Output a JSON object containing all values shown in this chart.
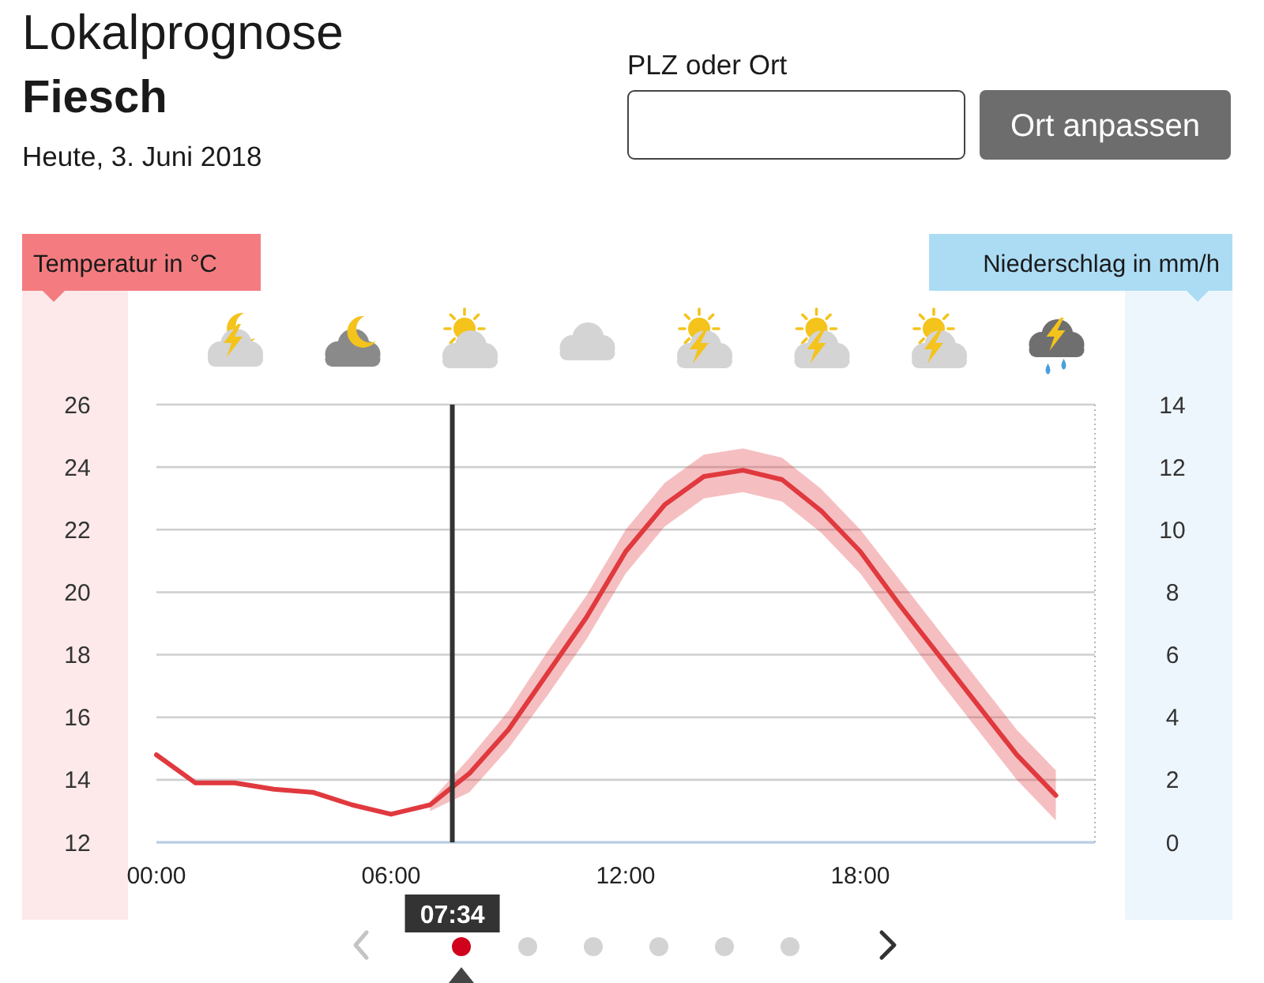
{
  "chart_data": {
    "type": "line",
    "title": "Lokalprognose",
    "subtitle": "Fiesch",
    "annotations": [
      "Heute, 3. Juni 2018",
      "PLZ oder Ort",
      "Ort anpassen"
    ],
    "ylabel": "Temperatur in °C",
    "y2label": "Niederschlag in mm/h",
    "x": [
      "2018-06-03T00:00",
      "2018-06-03T01:00",
      "2018-06-03T02:00",
      "2018-06-03T03:00",
      "2018-06-03T04:00",
      "2018-06-03T05:00",
      "2018-06-03T06:00",
      "2018-06-03T07:00",
      "2018-06-03T08:00",
      "2018-06-03T09:00",
      "2018-06-03T10:00",
      "2018-06-03T11:00",
      "2018-06-03T12:00",
      "2018-06-03T13:00",
      "2018-06-03T14:00",
      "2018-06-03T15:00",
      "2018-06-03T16:00",
      "2018-06-03T17:00",
      "2018-06-03T18:00",
      "2018-06-03T19:00",
      "2018-06-03T20:00",
      "2018-06-03T21:00",
      "2018-06-03T22:00",
      "2018-06-03T23:00"
    ],
    "xlim": [
      "2018-06-03T00:00",
      "2018-06-04T00:00"
    ],
    "xticks": [
      {
        "value": "2018-06-03T00:00",
        "label": "00:00"
      },
      {
        "value": "2018-06-03T06:00",
        "label": "06:00"
      },
      {
        "value": "2018-06-03T12:00",
        "label": "12:00"
      },
      {
        "value": "2018-06-03T18:00",
        "label": "18:00"
      }
    ],
    "ylim": [
      12,
      26
    ],
    "yticks": [
      12,
      14,
      16,
      18,
      20,
      22,
      24,
      26
    ],
    "y2lim": [
      0,
      14
    ],
    "y2ticks": [
      0,
      2,
      4,
      6,
      8,
      10,
      12,
      14
    ],
    "series": [
      {
        "color": "#e0393e",
        "values": [
          14.8,
          13.9,
          13.9,
          13.7,
          13.6,
          13.2,
          12.9,
          13.2,
          14.2,
          15.6,
          17.4,
          19.2,
          21.3,
          22.8,
          23.7,
          23.9,
          23.6,
          22.6,
          21.3,
          19.6,
          18.0,
          16.4,
          14.8,
          13.5
        ],
        "lower": [
          null,
          null,
          null,
          null,
          null,
          null,
          null,
          13.0,
          13.6,
          15.0,
          16.7,
          18.5,
          20.6,
          22.1,
          23.0,
          23.2,
          22.9,
          21.9,
          20.6,
          18.9,
          17.2,
          15.6,
          14.0,
          12.7
        ],
        "upper": [
          null,
          null,
          null,
          null,
          null,
          null,
          null,
          13.3,
          14.7,
          16.2,
          18.1,
          19.9,
          22.0,
          23.5,
          24.4,
          24.6,
          24.3,
          23.3,
          22.0,
          20.4,
          18.8,
          17.2,
          15.6,
          14.3
        ]
      }
    ],
    "ref_lines": [
      {
        "axis": "x",
        "value": "2018-06-03T07:34",
        "label": "07:34",
        "color": "#333333"
      }
    ],
    "grid": "y",
    "marker": "none"
  }
}
